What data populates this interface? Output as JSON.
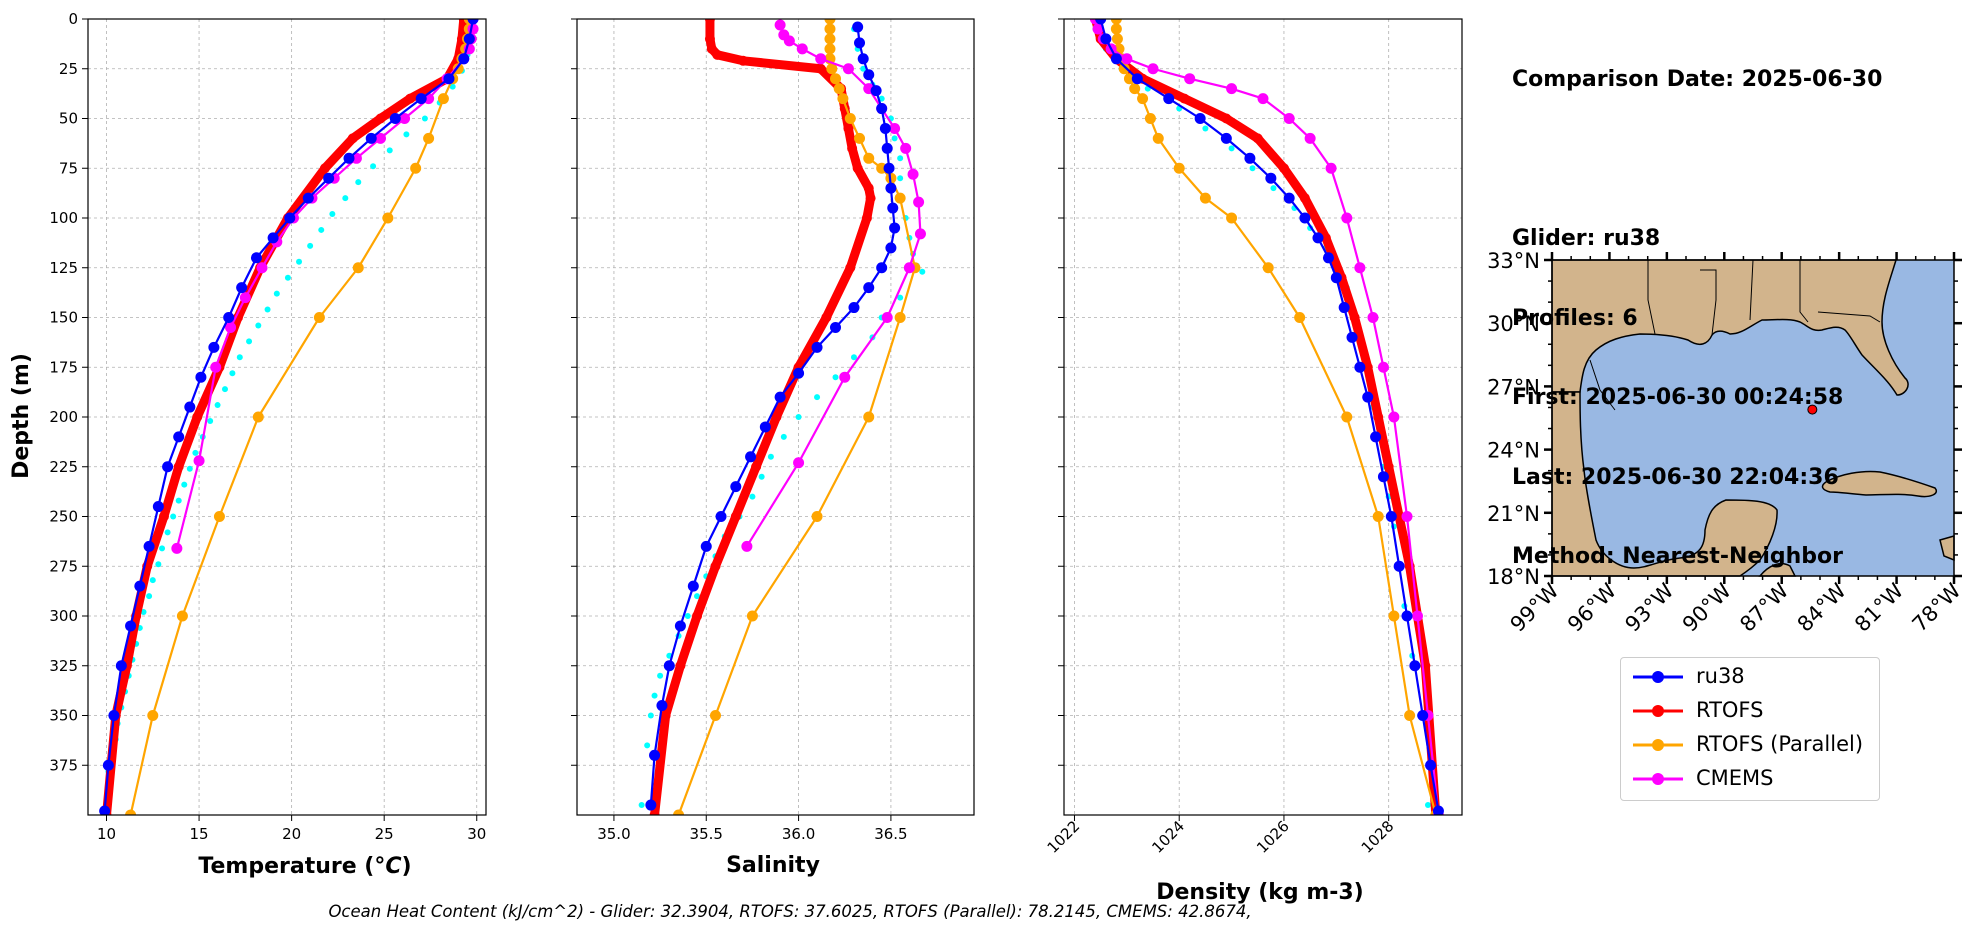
{
  "info": {
    "lines": [
      "Comparison Date: 2025-06-30",
      "",
      "Glider: ru38",
      "Profiles: 6",
      "First: 2025-06-30 00:24:58",
      "Last: 2025-06-30 22:04:36",
      "Method: Nearest-Neighbor"
    ]
  },
  "footer": "Ocean Heat Content (kJ/cm^2) - Glider: 32.3904,  RTOFS: 37.6025,  RTOFS (Parallel): 78.2145,  CMEMS: 42.8674,",
  "legend": [
    {
      "name": "ru38",
      "color": "#0000ff"
    },
    {
      "name": "RTOFS",
      "color": "#ff0000"
    },
    {
      "name": "RTOFS (Parallel)",
      "color": "#ffa500"
    },
    {
      "name": "CMEMS",
      "color": "#ff00ff"
    }
  ],
  "colors": {
    "land": "#d2b48c",
    "ocean": "#99b8e3",
    "glider_raw": "#00ffff"
  },
  "chart_data": [
    {
      "type": "line",
      "xlabel": "Temperature (°C)",
      "ylabel": "Depth (m)",
      "xlim": [
        9,
        30.5
      ],
      "ylim": [
        400,
        0
      ],
      "grid": true,
      "xticks": [
        10,
        15,
        20,
        25,
        30
      ],
      "yticks": [
        0,
        25,
        50,
        75,
        100,
        125,
        150,
        175,
        200,
        225,
        250,
        275,
        300,
        325,
        350,
        375
      ],
      "series": [
        {
          "name": "ru38",
          "style": "dots",
          "x": [
            29.8,
            29.7,
            29.5,
            29.2,
            28.7,
            28.0,
            27.2,
            26.2,
            25.3,
            24.4,
            23.6,
            22.9,
            22.2,
            21.6,
            21.0,
            20.4,
            19.8,
            19.2,
            18.7,
            18.2,
            17.7,
            17.2,
            16.8,
            16.4,
            16.0,
            15.6,
            15.2,
            14.8,
            14.5,
            14.2,
            13.9,
            13.6,
            13.3,
            13.0,
            12.8,
            12.5,
            12.3,
            12.0,
            11.8,
            11.6,
            11.4,
            11.2,
            11.0,
            10.8,
            10.6,
            10.5,
            10.3,
            10.1,
            10.0
          ],
          "y": [
            2,
            10,
            18,
            26,
            34,
            42,
            50,
            58,
            66,
            74,
            82,
            90,
            98,
            106,
            114,
            122,
            130,
            138,
            146,
            154,
            162,
            170,
            178,
            186,
            194,
            202,
            210,
            218,
            226,
            234,
            242,
            250,
            258,
            266,
            274,
            282,
            290,
            298,
            306,
            314,
            322,
            330,
            338,
            346,
            354,
            362,
            370,
            378,
            396
          ]
        },
        {
          "name": "RTOFS",
          "x": [
            29.3,
            29.2,
            29.0,
            28.4,
            26.4,
            24.8,
            23.3,
            21.8,
            19.8,
            18.3,
            17.1,
            16.1,
            14.9,
            13.9,
            13.1,
            12.2,
            11.6,
            11.1,
            10.5,
            10.0
          ],
          "y": [
            0,
            10,
            20,
            30,
            40,
            50,
            60,
            75,
            100,
            125,
            150,
            175,
            200,
            225,
            250,
            275,
            300,
            325,
            350,
            400
          ]
        },
        {
          "name": "RTOFS (Parallel)",
          "x": [
            29.6,
            29.6,
            29.5,
            29.4,
            29.2,
            29.0,
            28.7,
            28.2,
            27.4,
            26.7,
            25.2,
            23.6,
            21.5,
            18.2,
            16.1,
            14.1,
            12.5,
            11.3
          ],
          "y": [
            0,
            5,
            10,
            15,
            20,
            25,
            30,
            40,
            60,
            75,
            100,
            125,
            150,
            200,
            250,
            300,
            350,
            400
          ]
        },
        {
          "name": "CMEMS",
          "x": [
            29.8,
            29.8,
            29.7,
            29.6,
            29.3,
            28.4,
            27.4,
            26.1,
            24.8,
            23.5,
            22.3,
            21.1,
            20.1,
            19.2,
            18.4,
            17.5,
            16.7,
            15.9,
            15.0,
            13.8
          ],
          "y": [
            0,
            5,
            10,
            15,
            20,
            30,
            40,
            50,
            60,
            70,
            80,
            90,
            100,
            112,
            125,
            140,
            155,
            175,
            222,
            266
          ]
        },
        {
          "name": "ru38",
          "x": [
            29.8,
            29.6,
            29.3,
            28.5,
            27.0,
            25.6,
            24.3,
            23.1,
            22.0,
            20.9,
            19.9,
            19.0,
            18.1,
            17.3,
            16.6,
            15.8,
            15.1,
            14.5,
            13.9,
            13.3,
            12.8,
            12.3,
            11.8,
            11.3,
            10.8,
            10.4,
            10.1,
            9.9
          ],
          "y": [
            0,
            10,
            20,
            30,
            40,
            50,
            60,
            70,
            80,
            90,
            100,
            110,
            120,
            135,
            150,
            165,
            180,
            195,
            210,
            225,
            245,
            265,
            285,
            305,
            325,
            350,
            375,
            398
          ]
        }
      ]
    },
    {
      "type": "line",
      "xlabel": "Salinity",
      "xlim": [
        34.8,
        36.95
      ],
      "ylim": [
        400,
        0
      ],
      "grid": true,
      "xticks": [
        35.0,
        35.5,
        36.0,
        36.5
      ],
      "yticks": [
        0,
        25,
        50,
        75,
        100,
        125,
        150,
        175,
        200,
        225,
        250,
        275,
        300,
        325,
        350,
        375
      ],
      "series": [
        {
          "name": "ru38",
          "style": "dots",
          "x": [
            36.3,
            36.32,
            36.35,
            36.4,
            36.45,
            36.5,
            36.52,
            36.55,
            36.55,
            36.56,
            36.58,
            36.6,
            36.62,
            36.64,
            36.67,
            36.55,
            36.45,
            36.4,
            36.3,
            36.2,
            36.1,
            36.0,
            35.92,
            35.85,
            35.8,
            35.75,
            35.68,
            35.6,
            35.55,
            35.5,
            35.45,
            35.4,
            35.35,
            35.3,
            35.25,
            35.22,
            35.2,
            35.18,
            35.15
          ],
          "y": [
            5,
            15,
            25,
            33,
            40,
            50,
            60,
            70,
            80,
            90,
            100,
            110,
            118,
            124,
            127,
            140,
            150,
            160,
            170,
            180,
            190,
            200,
            210,
            220,
            230,
            240,
            250,
            260,
            270,
            280,
            290,
            300,
            310,
            320,
            330,
            340,
            350,
            365,
            395
          ]
        },
        {
          "name": "RTOFS",
          "x": [
            35.52,
            35.52,
            35.53,
            35.56,
            35.7,
            36.12,
            36.23,
            36.25,
            36.27,
            36.29,
            36.32,
            36.38,
            36.39,
            36.37,
            36.28,
            36.15,
            36.0,
            35.88,
            35.77,
            35.66,
            35.55,
            35.45,
            35.36,
            35.28,
            35.22
          ],
          "y": [
            0,
            10,
            15,
            18,
            21,
            25,
            35,
            45,
            55,
            65,
            75,
            85,
            90,
            100,
            125,
            150,
            175,
            200,
            225,
            250,
            275,
            300,
            325,
            350,
            400
          ]
        },
        {
          "name": "RTOFS (Parallel)",
          "x": [
            36.17,
            36.17,
            36.17,
            36.17,
            36.17,
            36.18,
            36.2,
            36.22,
            36.24,
            36.28,
            36.33,
            36.38,
            36.45,
            36.5,
            36.55,
            36.63,
            36.55,
            36.38,
            36.1,
            35.75,
            35.55,
            35.35
          ],
          "y": [
            0,
            5,
            10,
            15,
            20,
            25,
            30,
            35,
            40,
            50,
            60,
            70,
            75,
            80,
            90,
            125,
            150,
            200,
            250,
            300,
            350,
            400
          ]
        },
        {
          "name": "CMEMS",
          "x": [
            35.9,
            35.92,
            35.95,
            36.02,
            36.12,
            36.27,
            36.38,
            36.45,
            36.52,
            36.58,
            36.62,
            36.65,
            36.66,
            36.6,
            36.48,
            36.25,
            36.0,
            35.72
          ],
          "y": [
            3,
            8,
            11,
            15,
            20,
            25,
            35,
            45,
            55,
            65,
            78,
            92,
            108,
            125,
            150,
            180,
            223,
            265
          ]
        },
        {
          "name": "ru38",
          "x": [
            36.32,
            36.33,
            36.35,
            36.38,
            36.42,
            36.45,
            36.47,
            36.48,
            36.49,
            36.5,
            36.51,
            36.52,
            36.5,
            36.45,
            36.38,
            36.3,
            36.2,
            36.1,
            36.0,
            35.9,
            35.82,
            35.74,
            35.66,
            35.58,
            35.5,
            35.43,
            35.36,
            35.3,
            35.26,
            35.22,
            35.2
          ],
          "y": [
            4,
            12,
            20,
            28,
            36,
            45,
            55,
            65,
            75,
            85,
            95,
            105,
            115,
            125,
            135,
            145,
            155,
            165,
            178,
            190,
            205,
            220,
            235,
            250,
            265,
            285,
            305,
            325,
            345,
            370,
            395
          ]
        }
      ]
    },
    {
      "type": "line",
      "xlabel": "Density (kg m-3)",
      "xlim": [
        1021.8,
        1029.4
      ],
      "ylim": [
        400,
        0
      ],
      "grid": true,
      "xticks": [
        1022,
        1024,
        1026,
        1028
      ],
      "yticks": [
        0,
        25,
        50,
        75,
        100,
        125,
        150,
        175,
        200,
        225,
        250,
        275,
        300,
        325,
        350,
        375
      ],
      "series": [
        {
          "name": "ru38",
          "style": "dots",
          "x": [
            1022.4,
            1022.6,
            1022.9,
            1023.4,
            1024.0,
            1024.5,
            1025.0,
            1025.4,
            1025.8,
            1026.2,
            1026.5,
            1026.8,
            1027.0,
            1027.2,
            1027.3,
            1027.4,
            1027.5,
            1027.6,
            1027.7,
            1027.8,
            1027.9,
            1028.0,
            1028.1,
            1028.2,
            1028.3,
            1028.45,
            1028.6,
            1028.75
          ],
          "y": [
            5,
            15,
            25,
            35,
            45,
            55,
            65,
            75,
            85,
            95,
            105,
            115,
            125,
            135,
            145,
            155,
            165,
            178,
            195,
            210,
            225,
            240,
            255,
            275,
            295,
            320,
            350,
            395
          ]
        },
        {
          "name": "RTOFS",
          "x": [
            1022.4,
            1022.5,
            1022.8,
            1023.3,
            1024.1,
            1024.9,
            1025.5,
            1026.0,
            1026.4,
            1026.8,
            1027.1,
            1027.35,
            1027.6,
            1027.8,
            1028.0,
            1028.2,
            1028.4,
            1028.55,
            1028.7,
            1028.9
          ],
          "y": [
            0,
            10,
            20,
            30,
            40,
            50,
            60,
            75,
            90,
            110,
            130,
            150,
            175,
            200,
            225,
            250,
            275,
            300,
            325,
            400
          ]
        },
        {
          "name": "RTOFS (Parallel)",
          "x": [
            1022.8,
            1022.8,
            1022.82,
            1022.85,
            1022.9,
            1022.95,
            1023.05,
            1023.15,
            1023.3,
            1023.45,
            1023.6,
            1024.0,
            1024.5,
            1025.0,
            1025.7,
            1026.3,
            1027.2,
            1027.8,
            1028.1,
            1028.4,
            1028.9
          ],
          "y": [
            0,
            5,
            10,
            15,
            20,
            25,
            30,
            35,
            40,
            50,
            60,
            75,
            90,
            100,
            125,
            150,
            200,
            250,
            300,
            350,
            400
          ]
        },
        {
          "name": "CMEMS",
          "x": [
            1022.4,
            1022.45,
            1022.55,
            1022.7,
            1023.0,
            1023.5,
            1024.2,
            1025.0,
            1025.6,
            1026.1,
            1026.5,
            1026.9,
            1027.2,
            1027.45,
            1027.7,
            1027.9,
            1028.1,
            1028.35,
            1028.55,
            1028.75,
            1028.95
          ],
          "y": [
            0,
            5,
            10,
            15,
            20,
            25,
            30,
            35,
            40,
            50,
            60,
            75,
            100,
            125,
            150,
            175,
            200,
            250,
            300,
            350,
            400
          ]
        },
        {
          "name": "ru38",
          "x": [
            1022.5,
            1022.6,
            1022.8,
            1023.2,
            1023.8,
            1024.4,
            1024.9,
            1025.35,
            1025.75,
            1026.1,
            1026.4,
            1026.65,
            1026.85,
            1027.0,
            1027.15,
            1027.3,
            1027.45,
            1027.6,
            1027.75,
            1027.9,
            1028.05,
            1028.2,
            1028.35,
            1028.5,
            1028.65,
            1028.8,
            1028.95
          ],
          "y": [
            0,
            10,
            20,
            30,
            40,
            50,
            60,
            70,
            80,
            90,
            100,
            110,
            120,
            130,
            145,
            160,
            175,
            190,
            210,
            230,
            250,
            275,
            300,
            325,
            350,
            375,
            398
          ]
        }
      ]
    },
    {
      "type": "map",
      "lat_ticks": [
        "33°N",
        "30°N",
        "27°N",
        "24°N",
        "21°N",
        "18°N"
      ],
      "lon_ticks": [
        "99°W",
        "96°W",
        "93°W",
        "90°W",
        "87°W",
        "84°W",
        "81°W",
        "78°W"
      ],
      "lon_range": [
        -99,
        -78
      ],
      "lat_range": [
        18,
        33
      ],
      "glider_position": {
        "lon": -85.4,
        "lat": 25.9
      }
    }
  ]
}
